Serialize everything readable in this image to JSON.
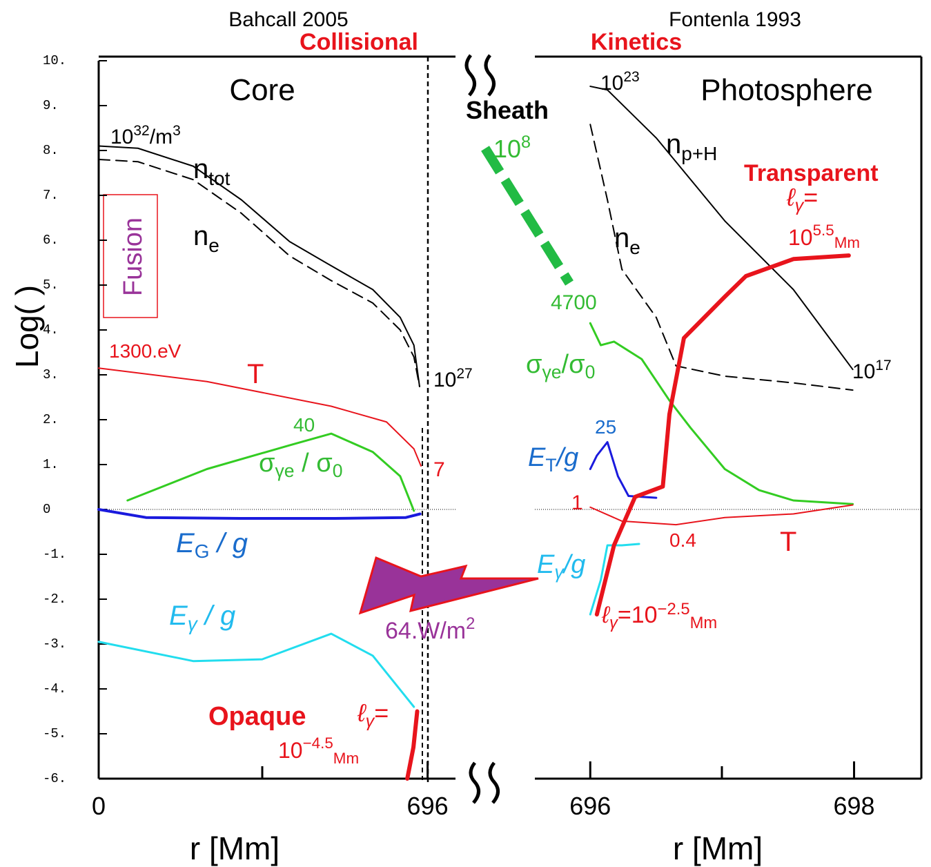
{
  "chart_data": [
    {
      "type": "line",
      "header": "Bahcall 2005",
      "ylabel": "Log(  )",
      "xlabel": "r  [Mm]",
      "xlim": [
        0,
        755
      ],
      "ylim": [
        -6,
        10
      ],
      "xticks": [
        0,
        696
      ],
      "yticks": [
        {
          "value": 10,
          "label": "10."
        },
        {
          "value": 9,
          "label": "9."
        },
        {
          "value": 8,
          "label": "8."
        },
        {
          "value": 7,
          "label": "7."
        },
        {
          "value": 6,
          "label": "6."
        },
        {
          "value": 5,
          "label": "5."
        },
        {
          "value": 4,
          "label": "4."
        },
        {
          "value": 3,
          "label": "3."
        },
        {
          "value": 2,
          "label": "2."
        },
        {
          "value": 1,
          "label": "1."
        },
        0,
        {
          "value": -1,
          "label": "-1."
        },
        {
          "value": -2,
          "label": "-2."
        },
        {
          "value": -3,
          "label": "-3."
        },
        {
          "value": -4,
          "label": "-4."
        },
        {
          "value": -5,
          "label": "-5."
        },
        {
          "value": -6,
          "label": "-6."
        }
      ],
      "hline": 0,
      "series": [
        {
          "color": "#000000",
          "style": "solid",
          "width": 2,
          "x": [
            0,
            83,
            200,
            302,
            404,
            492,
            580,
            638,
            667,
            679
          ],
          "values": [
            8.1,
            8.05,
            7.65,
            6.9,
            5.97,
            5.43,
            4.9,
            4.28,
            3.66,
            2.74
          ]
        },
        {
          "color": "#000000",
          "style": "dashed",
          "width": 2,
          "x": [
            0,
            83,
            200,
            302,
            404,
            492,
            580,
            638,
            667,
            679
          ],
          "values": [
            7.8,
            7.75,
            7.35,
            6.6,
            5.65,
            5.1,
            4.6,
            4.0,
            3.4,
            2.74
          ]
        },
        {
          "color": "#e8141c",
          "style": "solid",
          "width": 2,
          "x": [
            0,
            229,
            492,
            609,
            667,
            682
          ],
          "values": [
            3.15,
            2.85,
            2.3,
            1.95,
            1.35,
            0.97
          ]
        },
        {
          "color": "#33cc22",
          "style": "solid",
          "width": 3,
          "x": [
            61,
            229,
            404,
            492,
            580,
            638,
            667
          ],
          "values": [
            0.2,
            0.9,
            1.43,
            1.69,
            1.28,
            0.74,
            -0.03
          ]
        },
        {
          "color": "#1a1add",
          "style": "solid",
          "width": 4,
          "x": [
            0,
            100,
            300,
            500,
            650,
            680
          ],
          "values": [
            0,
            -0.18,
            -0.2,
            -0.2,
            -0.18,
            -0.1
          ]
        },
        {
          "color": "#22ddee",
          "style": "solid",
          "width": 3,
          "x": [
            0,
            200,
            346,
            492,
            580,
            667
          ],
          "values": [
            -2.95,
            -3.38,
            -3.34,
            -2.77,
            -3.26,
            -4.4
          ]
        },
        {
          "color": "#e8141c",
          "style": "solid",
          "width": 6,
          "x": [
            674,
            666,
            653
          ],
          "values": [
            -4.5,
            -5.3,
            -6
          ]
        }
      ]
    },
    {
      "type": "line",
      "header": "Fontenla 1993",
      "xlabel": "r  [Mm]",
      "xlim": [
        695.58,
        698.51
      ],
      "ylim": [
        -6,
        10
      ],
      "xticks": [
        696,
        698
      ],
      "hline": 0,
      "series": [
        {
          "color": "#000000",
          "style": "solid",
          "width": 2,
          "x": [
            696,
            696.13,
            696.5,
            697.02,
            697.54,
            697.99
          ],
          "values": [
            9.43,
            9.35,
            8.28,
            6.43,
            4.9,
            3.12
          ]
        },
        {
          "color": "#000000",
          "style": "dashed",
          "width": 2,
          "x": [
            696,
            696.13,
            696.24,
            696.5,
            696.65,
            697.02,
            697.54,
            697.99
          ],
          "values": [
            8.58,
            6.9,
            5.35,
            4.28,
            3.2,
            2.97,
            2.82,
            2.66
          ]
        },
        {
          "color": "#33cc22",
          "style": "solid",
          "width": 3,
          "x": [
            696,
            696.08,
            696.18,
            696.39,
            696.6,
            696.76,
            697.02,
            697.28,
            697.54,
            697.99
          ],
          "values": [
            4.15,
            3.66,
            3.74,
            3.35,
            2.43,
            1.82,
            0.9,
            0.43,
            0.2,
            0.12
          ]
        },
        {
          "color": "#1a1add",
          "style": "solid",
          "width": 3,
          "x": [
            696,
            696.05,
            696.13,
            696.21,
            696.29,
            696.5
          ],
          "values": [
            0.9,
            1.2,
            1.5,
            0.74,
            0.3,
            0.26
          ]
        },
        {
          "color": "#e8141c",
          "style": "solid",
          "width": 2,
          "x": [
            696,
            696.24,
            696.65,
            697.02,
            697.54,
            697.99
          ],
          "values": [
            0.05,
            -0.26,
            -0.34,
            -0.18,
            -0.1,
            0.1
          ]
        },
        {
          "color": "#22ddee",
          "style": "solid",
          "width": 3,
          "x": [
            696,
            696.08,
            696.13,
            696.24,
            696.37
          ],
          "values": [
            -2.34,
            -1.57,
            -0.8,
            -0.8,
            -0.77
          ]
        },
        {
          "color": "#e8141c",
          "style": "solid",
          "width": 6,
          "x": [
            696.05,
            696.18,
            696.34,
            696.55,
            696.6,
            696.71,
            697.02,
            697.18,
            697.54,
            697.96
          ],
          "values": [
            -2.34,
            -0.8,
            0.28,
            0.51,
            2.12,
            3.82,
            4.74,
            5.2,
            5.58,
            5.66
          ]
        }
      ]
    }
  ],
  "annotations": {
    "collisional": "Collisional",
    "kinetics": "Kinetics",
    "core": "Core",
    "photosphere": "Photosphere",
    "sheath": "Sheath",
    "fusion": "Fusion",
    "opaque": "Opaque",
    "transparent": "Transparent",
    "density_core": [
      "10",
      "32",
      "/m",
      "3"
    ],
    "n_tot": [
      "n",
      "tot"
    ],
    "n_e_left": [
      "n",
      "e"
    ],
    "temp_core": "1300.eV",
    "t_left": "T",
    "sigma_peak": "40",
    "sigma_left": [
      "σ",
      "γe",
      " / σ",
      "0"
    ],
    "temp_edge": "7",
    "density_edge": [
      "10",
      "27"
    ],
    "eg_left": [
      "E",
      "G",
      " / g"
    ],
    "egamma_left": [
      "E",
      "γ",
      " / g"
    ],
    "flux": [
      "64.W/m",
      "2"
    ],
    "ell_left": [
      "ℓ",
      "γ",
      "="
    ],
    "ell_left_value": [
      "10",
      "−4.5",
      "Mm"
    ],
    "density_photo": [
      "10",
      "23"
    ],
    "n_ph": [
      "n",
      "p+H"
    ],
    "sheath_density": [
      "10",
      "8"
    ],
    "sigma_peak_right": "4700",
    "n_e_right": [
      "n",
      "e"
    ],
    "sigma_right": [
      "σ",
      "γe",
      "/σ",
      "0"
    ],
    "density_top": [
      "10",
      "17"
    ],
    "et_peak": "25",
    "et_right": [
      "E",
      "T",
      "/g"
    ],
    "t_one": "1",
    "t_min": "0.4",
    "t_right": "T",
    "egamma_right": [
      "E",
      "γ",
      "/g"
    ],
    "ell_bottom": [
      "ℓ",
      "γ",
      "=10",
      "−2.5",
      "Mm"
    ],
    "ell_right": [
      "ℓ",
      "γ",
      "="
    ],
    "ell_right_value": [
      "10",
      "5.5",
      "Mm"
    ]
  }
}
